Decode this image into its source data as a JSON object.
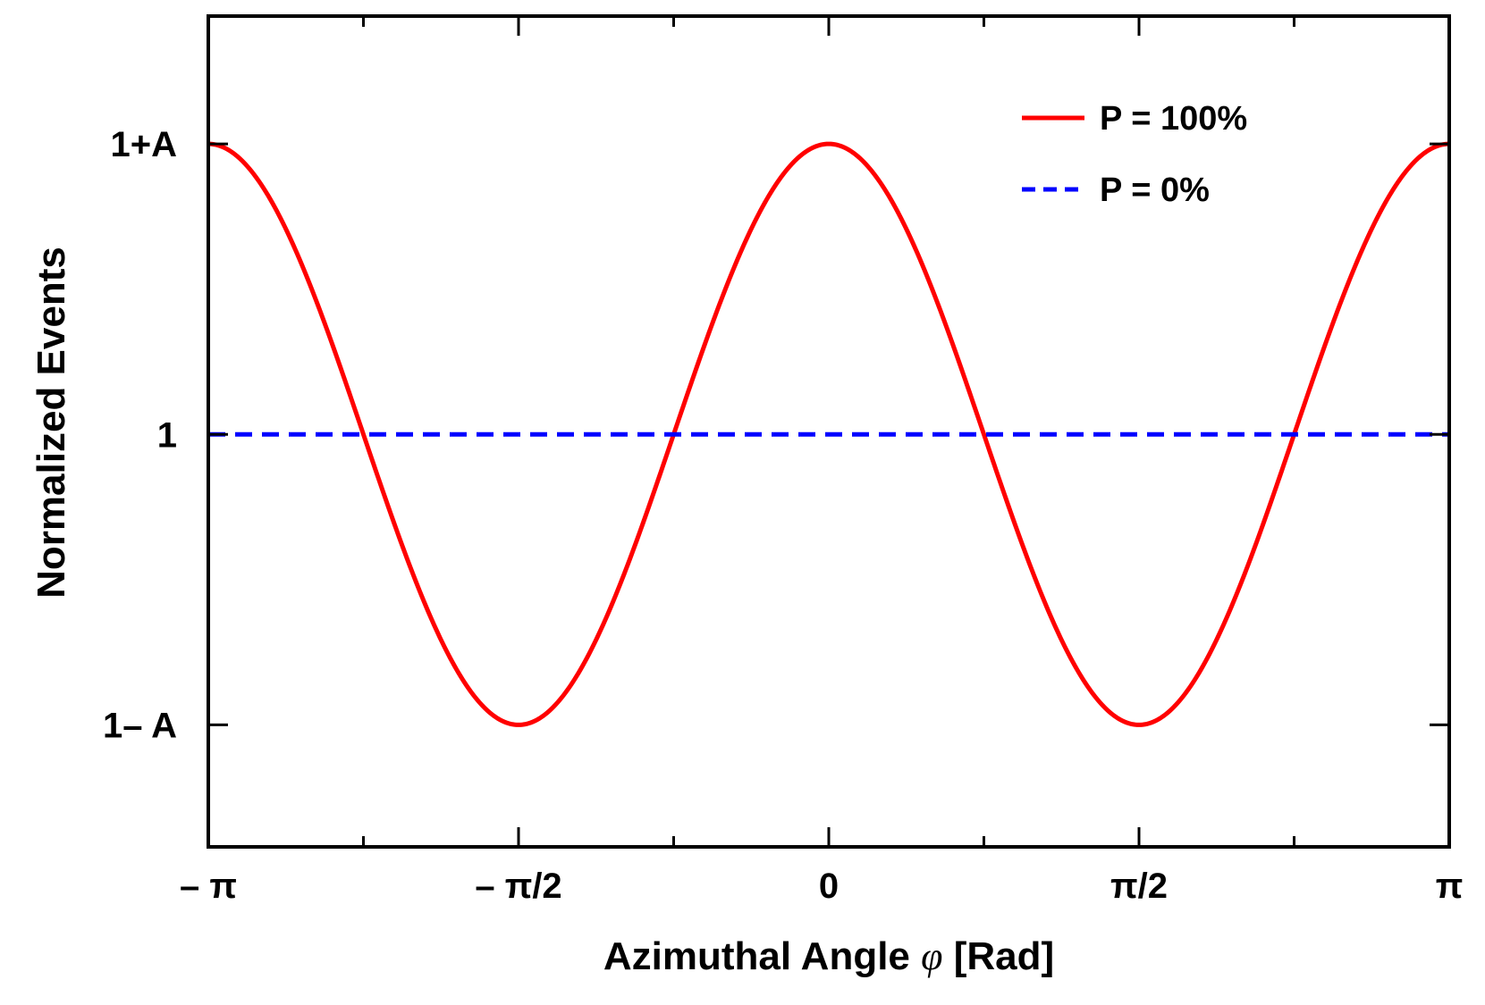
{
  "chart_data": {
    "type": "line",
    "xlabel_parts": [
      "Azimuthal Angle ",
      "φ",
      " [Rad]"
    ],
    "ylabel": "Normalized Events",
    "x_ticks": [
      {
        "label": "– π",
        "value": -3.14159265
      },
      {
        "label": "– π/2",
        "value": -1.57079633
      },
      {
        "label": "0",
        "value": 0
      },
      {
        "label": "π/2",
        "value": 1.57079633
      },
      {
        "label": "π",
        "value": 3.14159265
      }
    ],
    "x_minor_ticks": [
      -2.35619449,
      -0.78539816,
      0.78539816,
      2.35619449
    ],
    "y_ticks": [
      {
        "label": "1+A",
        "value": 1.5
      },
      {
        "label": "1",
        "value": 1.0
      },
      {
        "label": "1– A",
        "value": 0.5
      }
    ],
    "xlim": [
      -3.14159265,
      3.14159265
    ],
    "ylim": [
      0.29,
      1.72
    ],
    "series": [
      {
        "name": "P = 100%",
        "color": "#ff0000",
        "style": "solid",
        "function": "1 + A*cos(2*phi)",
        "A": 0.5,
        "x": [
          -3.1416,
          -2.7489,
          -2.3562,
          -1.9635,
          -1.5708,
          -1.1781,
          -0.7854,
          -0.3927,
          0,
          0.3927,
          0.7854,
          1.1781,
          1.5708,
          1.9635,
          2.3562,
          2.7489,
          3.1416
        ],
        "y": [
          1.5,
          1.354,
          1.0,
          0.646,
          0.5,
          0.646,
          1.0,
          1.354,
          1.5,
          1.354,
          1.0,
          0.646,
          0.5,
          0.646,
          1.0,
          1.354,
          1.5
        ]
      },
      {
        "name": "P = 0%",
        "color": "#0000ff",
        "style": "dashed",
        "x": [
          -3.14159265,
          3.14159265
        ],
        "y": [
          1.0,
          1.0
        ]
      }
    ],
    "grid": false,
    "legend_position": "top-right"
  }
}
